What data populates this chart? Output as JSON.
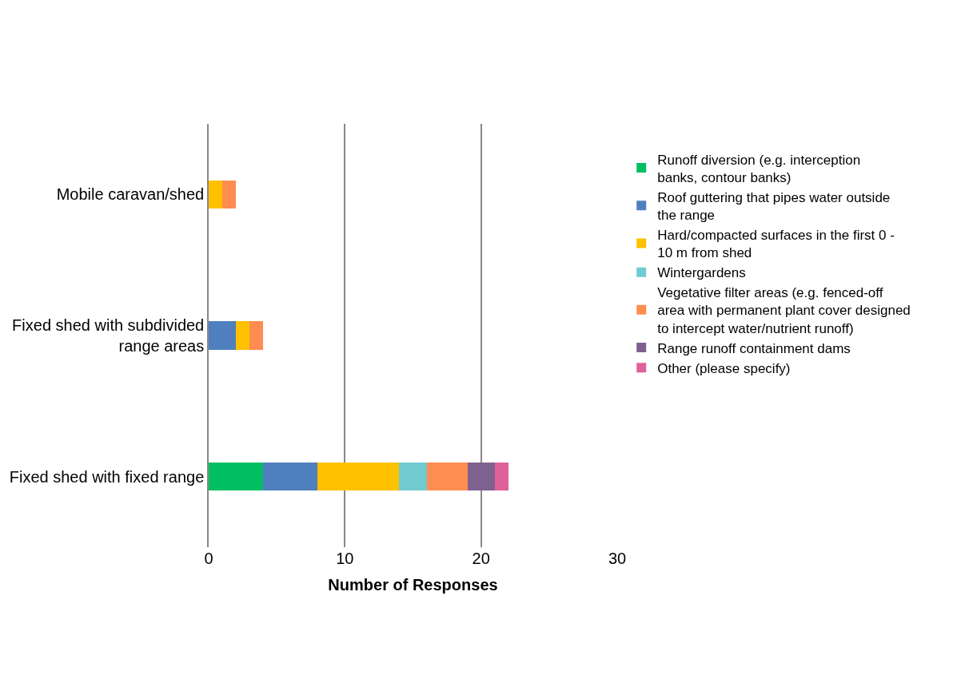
{
  "chart_data": {
    "type": "bar",
    "orientation": "horizontal",
    "stacked": true,
    "xlabel": "Number of Responses",
    "categories": [
      "Mobile caravan/shed",
      "Fixed shed with subdivided range areas",
      "Fixed shed with fixed range"
    ],
    "series": [
      {
        "name": "Runoff diversion (e.g. interception banks, contour banks)",
        "color": "#00bf63",
        "values": [
          null,
          null,
          4
        ]
      },
      {
        "name": "Roof guttering that pipes water outside the range",
        "color": "#4f7fbe",
        "values": [
          null,
          2,
          4
        ]
      },
      {
        "name": "Hard/compacted surfaces in the first 0 - 10 m from shed",
        "color": "#ffc000",
        "values": [
          1,
          1,
          6
        ]
      },
      {
        "name": "Wintergardens",
        "color": "#6fcbd0",
        "values": [
          null,
          null,
          2
        ]
      },
      {
        "name": "Vegetative filter areas (e.g. fenced-off area with permanent plant cover designed to intercept water/nutrient runoff)",
        "color": "#ff8c50",
        "values": [
          1,
          1,
          3
        ]
      },
      {
        "name": "Range runoff containment dams",
        "color": "#7f6190",
        "values": [
          null,
          null,
          2
        ]
      },
      {
        "name": "Other (please specify)",
        "color": "#e0609a",
        "values": [
          null,
          null,
          1
        ]
      }
    ],
    "xlim": [
      0,
      30
    ],
    "xticks": [
      0,
      10,
      20,
      30
    ],
    "grid": "x",
    "legend": "right"
  }
}
